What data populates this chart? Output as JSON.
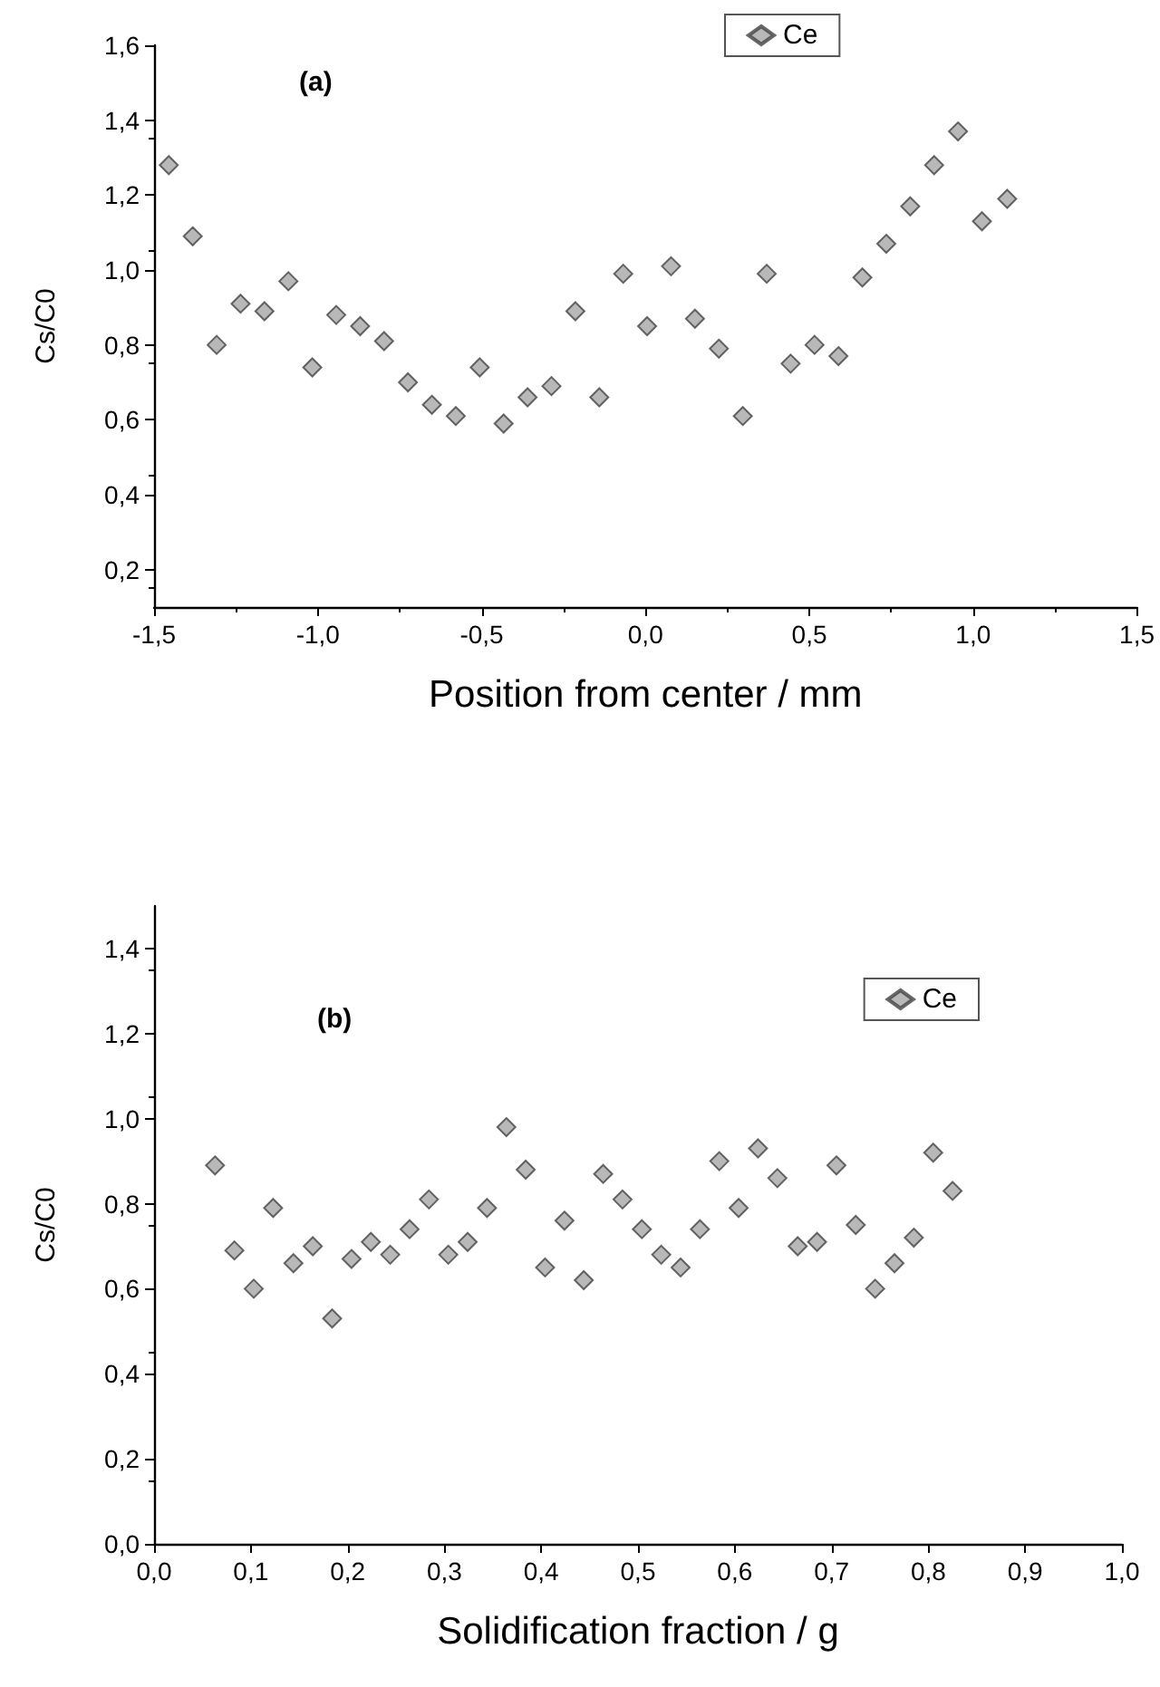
{
  "chart_data": [
    {
      "type": "scatter",
      "title": "(a)",
      "xlabel": "Position from center / mm",
      "ylabel": "Cs/C0",
      "legend": "top",
      "marker": "diamond",
      "x": [
        -1.455,
        -1.382,
        -1.309,
        -1.236,
        -1.163,
        -1.09,
        -1.017,
        -0.944,
        -0.871,
        -0.798,
        -0.725,
        -0.652,
        -0.579,
        -0.506,
        -0.433,
        -0.36,
        -0.287,
        -0.214,
        -0.141,
        -0.068,
        0.005,
        0.078,
        0.151,
        0.224,
        0.297,
        0.37,
        0.443,
        0.516,
        0.589,
        0.662,
        0.735,
        0.808,
        0.881,
        0.954,
        1.027,
        1.104
      ],
      "series": [
        {
          "name": "Ce",
          "color": "#a6a6a6",
          "values": [
            1.28,
            1.09,
            0.8,
            0.91,
            0.89,
            0.97,
            0.74,
            0.88,
            0.85,
            0.81,
            0.7,
            0.64,
            0.61,
            0.74,
            0.59,
            0.66,
            0.69,
            0.89,
            0.66,
            0.99,
            0.85,
            1.01,
            0.87,
            0.79,
            0.61,
            0.99,
            0.75,
            0.8,
            0.77,
            0.98,
            1.07,
            1.17,
            1.28,
            1.37,
            1.13,
            1.19
          ]
        }
      ],
      "xlim": [
        -1.5,
        1.5
      ],
      "ylim": [
        0.1,
        1.6
      ],
      "xticks": [
        {
          "value": -1.5,
          "label": "-1,5"
        },
        {
          "value": -1,
          "label": "-1,0"
        },
        {
          "value": -0.5,
          "label": "-0,5"
        },
        {
          "value": 0,
          "label": "0,0"
        },
        {
          "value": 0.5,
          "label": "0,5"
        },
        {
          "value": 1,
          "label": "1,0"
        },
        {
          "value": 1.5,
          "label": "1,5"
        }
      ],
      "yticks": [
        {
          "value": 0.2,
          "label": "0,2"
        },
        {
          "value": 0.4,
          "label": "0,4"
        },
        {
          "value": 0.6,
          "label": "0,6"
        },
        {
          "value": 0.8,
          "label": "0,8"
        },
        {
          "value": 1,
          "label": "1,0"
        },
        {
          "value": 1.2,
          "label": "1,2"
        },
        {
          "value": 1.4,
          "label": "1,4"
        },
        {
          "value": 1.6,
          "label": "1,6"
        }
      ]
    },
    {
      "type": "scatter",
      "title": "(b)",
      "xlabel": "Solidification fraction / g",
      "ylabel": "Cs/C0",
      "legend": "top right",
      "marker": "diamond",
      "x": [
        0.063,
        0.083,
        0.103,
        0.123,
        0.144,
        0.164,
        0.184,
        0.204,
        0.224,
        0.244,
        0.264,
        0.284,
        0.304,
        0.324,
        0.344,
        0.364,
        0.384,
        0.404,
        0.424,
        0.444,
        0.464,
        0.484,
        0.504,
        0.524,
        0.544,
        0.564,
        0.584,
        0.604,
        0.624,
        0.644,
        0.665,
        0.685,
        0.705,
        0.725,
        0.745,
        0.765,
        0.785,
        0.805,
        0.825
      ],
      "series": [
        {
          "name": "Ce",
          "color": "#a6a6a6",
          "values": [
            0.89,
            0.69,
            0.6,
            0.79,
            0.66,
            0.7,
            0.53,
            0.67,
            0.71,
            0.68,
            0.74,
            0.81,
            0.68,
            0.71,
            0.79,
            0.98,
            0.88,
            0.65,
            0.76,
            0.62,
            0.87,
            0.81,
            0.74,
            0.68,
            0.65,
            0.74,
            0.9,
            0.79,
            0.93,
            0.86,
            0.7,
            0.71,
            0.89,
            0.75,
            0.6,
            0.66,
            0.72,
            0.92,
            0.83
          ]
        }
      ],
      "xlim": [
        0,
        1
      ],
      "ylim": [
        0,
        1.5
      ],
      "xticks": [
        {
          "value": 0,
          "label": "0,0"
        },
        {
          "value": 0.1,
          "label": "0,1"
        },
        {
          "value": 0.2,
          "label": "0,2"
        },
        {
          "value": 0.3,
          "label": "0,3"
        },
        {
          "value": 0.4,
          "label": "0,4"
        },
        {
          "value": 0.5,
          "label": "0,5"
        },
        {
          "value": 0.6,
          "label": "0,6"
        },
        {
          "value": 0.7,
          "label": "0,7"
        },
        {
          "value": 0.8,
          "label": "0,8"
        },
        {
          "value": 0.9,
          "label": "0,9"
        },
        {
          "value": 1,
          "label": "1,0"
        }
      ],
      "yticks": [
        {
          "value": 0,
          "label": "0,0"
        },
        {
          "value": 0.2,
          "label": "0,2"
        },
        {
          "value": 0.4,
          "label": "0,4"
        },
        {
          "value": 0.6,
          "label": "0,6"
        },
        {
          "value": 0.8,
          "label": "0,8"
        },
        {
          "value": 1,
          "label": "1,0"
        },
        {
          "value": 1.2,
          "label": "1,2"
        },
        {
          "value": 1.4,
          "label": "1,4"
        }
      ]
    }
  ]
}
